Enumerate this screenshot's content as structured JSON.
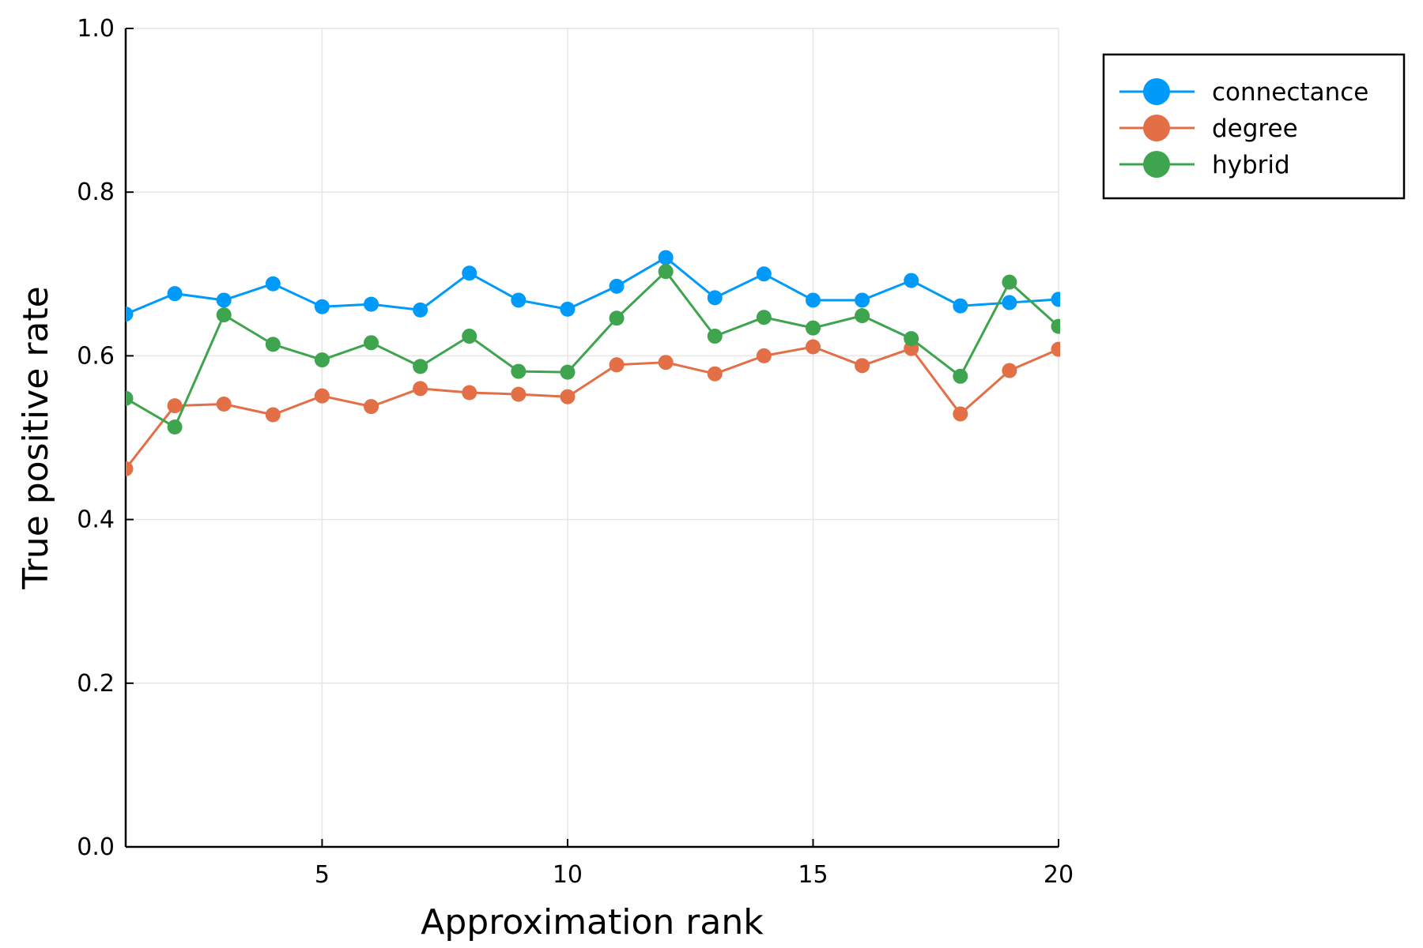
{
  "chart_data": {
    "type": "line",
    "title": "",
    "xlabel": "Approximation rank",
    "ylabel": "True positive rate",
    "xlim": [
      1,
      20
    ],
    "ylim": [
      0.0,
      1.0
    ],
    "x_ticks": [
      5,
      10,
      15,
      20
    ],
    "y_ticks": [
      0.0,
      0.2,
      0.4,
      0.6,
      0.8,
      1.0
    ],
    "x_tick_labels": [
      "5",
      "10",
      "15",
      "20"
    ],
    "y_tick_labels": [
      "0.0",
      "0.2",
      "0.4",
      "0.6",
      "0.8",
      "1.0"
    ],
    "grid": true,
    "legend_position": "outside-top-right",
    "x": [
      1,
      2,
      3,
      4,
      5,
      6,
      7,
      8,
      9,
      10,
      11,
      12,
      13,
      14,
      15,
      16,
      17,
      18,
      19,
      20
    ],
    "series": [
      {
        "name": "connectance",
        "color": "#009AFA",
        "values": [
          0.651,
          0.676,
          0.668,
          0.688,
          0.66,
          0.663,
          0.656,
          0.701,
          0.668,
          0.657,
          0.685,
          0.72,
          0.671,
          0.7,
          0.668,
          0.668,
          0.692,
          0.661,
          0.665,
          0.669
        ]
      },
      {
        "name": "degree",
        "color": "#E26F46",
        "values": [
          0.462,
          0.539,
          0.541,
          0.528,
          0.551,
          0.538,
          0.56,
          0.555,
          0.553,
          0.55,
          0.589,
          0.592,
          0.578,
          0.6,
          0.611,
          0.588,
          0.609,
          0.529,
          0.582,
          0.608
        ]
      },
      {
        "name": "hybrid",
        "color": "#3EA44E",
        "values": [
          0.548,
          0.513,
          0.65,
          0.614,
          0.595,
          0.616,
          0.587,
          0.624,
          0.581,
          0.58,
          0.646,
          0.703,
          0.624,
          0.647,
          0.634,
          0.649,
          0.621,
          0.575,
          0.69,
          0.636
        ]
      }
    ]
  }
}
